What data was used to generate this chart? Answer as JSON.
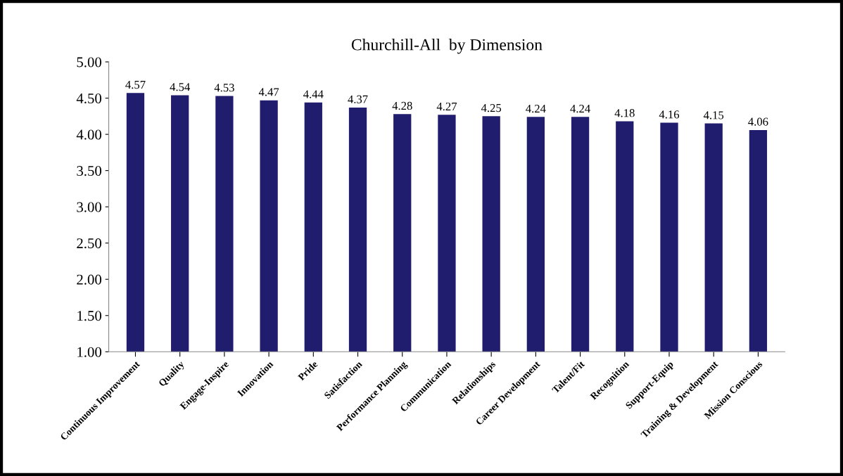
{
  "chart_data": {
    "type": "bar",
    "title": "Churchill-All  by Dimension",
    "categories": [
      "Continuous Improvement",
      "Quality",
      "Engage-Inspire",
      "Innovation",
      "Pride",
      "Satisfaction",
      "Performance Planning",
      "Communication",
      "Relationships",
      "Career Development",
      "Talent/Fit",
      "Recognition",
      "Support-Equip",
      "Training & Development",
      "Mission Conscious"
    ],
    "values": [
      4.57,
      4.54,
      4.53,
      4.47,
      4.44,
      4.37,
      4.28,
      4.27,
      4.25,
      4.24,
      4.24,
      4.18,
      4.16,
      4.15,
      4.06
    ],
    "color": "#201c6e",
    "ylim": [
      1,
      5
    ],
    "yticks": [
      {
        "value": 1,
        "label": "1.00"
      },
      {
        "value": 1.5,
        "label": "1.50"
      },
      {
        "value": 2,
        "label": "2.00"
      },
      {
        "value": 2.5,
        "label": "2.50"
      },
      {
        "value": 3,
        "label": "3.00"
      },
      {
        "value": 3.5,
        "label": "3.50"
      },
      {
        "value": 4,
        "label": "4.00"
      },
      {
        "value": 4.5,
        "label": "4.50"
      },
      {
        "value": 5,
        "label": "5.00"
      }
    ],
    "data_labels": true,
    "grid": false,
    "legend": false
  }
}
